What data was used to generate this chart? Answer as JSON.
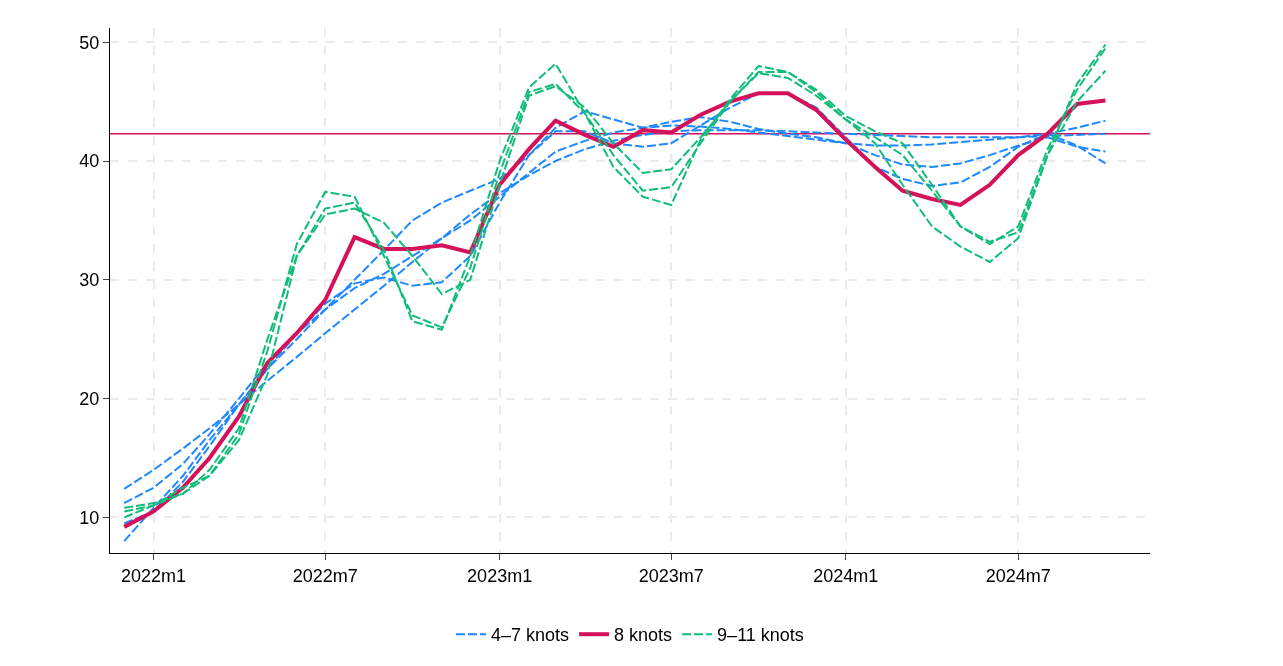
{
  "chart_data": {
    "type": "line",
    "x": [
      "2021-12",
      "2022-01",
      "2022-02",
      "2022-03",
      "2022-04",
      "2022-05",
      "2022-06",
      "2022-07",
      "2022-08",
      "2022-09",
      "2022-10",
      "2022-11",
      "2022-12",
      "2023-01",
      "2023-02",
      "2023-03",
      "2023-04",
      "2023-05",
      "2023-06",
      "2023-07",
      "2023-08",
      "2023-09",
      "2023-10",
      "2023-11",
      "2023-12",
      "2024-01",
      "2024-02",
      "2024-03",
      "2024-04",
      "2024-05",
      "2024-06",
      "2024-07",
      "2024-08",
      "2024-09",
      "2024-10"
    ],
    "series": [
      {
        "name": "4–7 knots",
        "color": "#1e88ff",
        "line_style": "dashed",
        "values": [
          12.4,
          14,
          15.8,
          17.5,
          19.5,
          21.5,
          23.5,
          25.5,
          27.5,
          29.5,
          31.5,
          33.5,
          35.5,
          37.3,
          38.8,
          40,
          41,
          41.7,
          42.2,
          42.5,
          42.6,
          42.6,
          42.6,
          42.5,
          42.4,
          42.3,
          42.2,
          42.1,
          42,
          42,
          42,
          42,
          42.1,
          42.2,
          42.3
        ]
      },
      {
        "color": "#1e88ff",
        "line_style": "dashed",
        "values": [
          11.2,
          12.5,
          14.5,
          17,
          20,
          23,
          25.5,
          27.5,
          29.3,
          30.5,
          32,
          33.5,
          35,
          37,
          39,
          40.8,
          41.7,
          42.4,
          42.8,
          43,
          42.9,
          42.7,
          42.4,
          42.1,
          41.8,
          41.5,
          41.3,
          41.3,
          41.4,
          41.6,
          41.8,
          42,
          42.3,
          42.8,
          43.4
        ]
      },
      {
        "color": "#1e88ff",
        "line_style": "dashed",
        "values": [
          9.5,
          10.5,
          13,
          16,
          19.5,
          22.5,
          25.5,
          28,
          29.7,
          30.2,
          29.5,
          29.8,
          32,
          36.5,
          40.5,
          42.8,
          44.2,
          43.5,
          42.8,
          43.3,
          43.7,
          43.3,
          42.7,
          42.3,
          42,
          41.5,
          40.5,
          39.7,
          39.5,
          39.8,
          40.5,
          41.3,
          42,
          41.2,
          40.8
        ]
      },
      {
        "color": "#1e88ff",
        "line_style": "dashed",
        "values": [
          8.0,
          10.8,
          13.5,
          16.5,
          19.5,
          22.5,
          25,
          27.5,
          30,
          32.5,
          35,
          36.5,
          37.5,
          38.5,
          40.5,
          42.5,
          42.5,
          41.5,
          41.2,
          41.5,
          43,
          44.5,
          45.7,
          45.7,
          44.5,
          42,
          39.5,
          38.5,
          37.9,
          38.2,
          39.5,
          41.2,
          42.3,
          41.3,
          39.8
        ]
      },
      {
        "name": "8 knots",
        "color": "#d41159",
        "line_style": "solid",
        "values": [
          9.2,
          10.5,
          12.5,
          15,
          18.5,
          23,
          25.5,
          28.3,
          33.6,
          32.6,
          32.6,
          32.9,
          32.3,
          38,
          41,
          43.4,
          42.2,
          41.2,
          42.6,
          42.4,
          43.9,
          45,
          45.7,
          45.7,
          44.3,
          41.8,
          39.5,
          37.5,
          36.8,
          36.3,
          38,
          40.5,
          42.3,
          44.8,
          45.1
        ]
      },
      {
        "name": "9–11 knots",
        "color": "#10bd78",
        "line_style": "dashed",
        "values": [
          10,
          11,
          12,
          14,
          17.5,
          25,
          32,
          35.5,
          36,
          34.8,
          32,
          28.8,
          30,
          38,
          45.5,
          46.3,
          44.5,
          41.5,
          39,
          39.3,
          42,
          45,
          47.5,
          47.5,
          46,
          43.8,
          42.5,
          41.5,
          38,
          34.5,
          33.2,
          34,
          40.5,
          45,
          47.6
        ]
      },
      {
        "color": "#10bd78",
        "line_style": "dashed",
        "values": [
          10.5,
          11,
          12.5,
          13.5,
          17,
          24,
          33,
          37.4,
          37,
          32,
          27,
          26,
          31,
          39,
          45.8,
          46.5,
          44,
          40.5,
          37.5,
          37.8,
          41.5,
          45,
          47.4,
          47,
          45.5,
          43.5,
          42,
          40.5,
          37.5,
          34.5,
          33,
          34.5,
          41,
          46,
          49.5
        ]
      },
      {
        "color": "#10bd78",
        "line_style": "dashed",
        "values": [
          10.8,
          11.2,
          12,
          13.5,
          16.5,
          22,
          32,
          36,
          36.5,
          32.5,
          26.5,
          25.8,
          32,
          40,
          46.2,
          48.2,
          44,
          39.5,
          37,
          36.3,
          41.8,
          45.2,
          48,
          47.5,
          45.8,
          43.5,
          41.5,
          38,
          34.5,
          32.8,
          31.5,
          33.5,
          40.5,
          46.5,
          49.8
        ]
      }
    ],
    "xlim": [
      "2021-11-16",
      "2024-11-17"
    ],
    "xticks": [
      {
        "value": "2022-01",
        "label": "2022m1"
      },
      {
        "value": "2022-07",
        "label": "2022m7"
      },
      {
        "value": "2023-01",
        "label": "2023m1"
      },
      {
        "value": "2023-07",
        "label": "2023m7"
      },
      {
        "value": "2024-01",
        "label": "2024m1"
      },
      {
        "value": "2024-07",
        "label": "2024m7"
      }
    ],
    "ylim": [
      7,
      51.2
    ],
    "yticks": [
      10,
      20,
      30,
      40,
      50
    ],
    "ref_lines": [
      {
        "axis": "y",
        "value": 42.3,
        "color": "#d41159"
      }
    ],
    "grid": true,
    "legend": "bottom",
    "marker": "none"
  }
}
